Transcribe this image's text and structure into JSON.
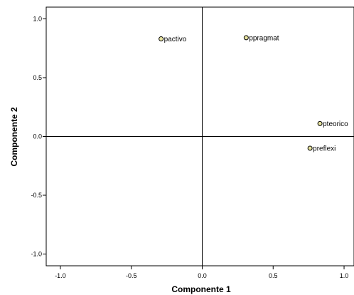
{
  "chart_data": {
    "type": "scatter",
    "xlabel": "Componente 1",
    "ylabel": "Componente 2",
    "xlim": [
      -1.1,
      1.07
    ],
    "ylim": [
      -1.1,
      1.1
    ],
    "xticks": [
      "-1.0",
      "-0.5",
      "0.0",
      "0.5",
      "1.0"
    ],
    "yticks": [
      "1.0",
      "0.5",
      "0.0",
      "-0.5",
      "-1.0"
    ],
    "xtick_values": [
      -1.0,
      -0.5,
      0.0,
      0.5,
      1.0
    ],
    "ytick_values": [
      1.0,
      0.5,
      0.0,
      -0.5,
      -1.0
    ],
    "grid": false,
    "reference_lines": {
      "x": 0,
      "y": 0
    },
    "marker_fill": "#e8e4a0",
    "marker_stroke": "#000000",
    "points": [
      {
        "label": "pactivo",
        "x": -0.29,
        "y": 0.83
      },
      {
        "label": "ppragmat",
        "x": 0.31,
        "y": 0.84
      },
      {
        "label": "pteorico",
        "x": 0.83,
        "y": 0.11
      },
      {
        "label": "preflexi",
        "x": 0.76,
        "y": -0.1
      }
    ]
  }
}
